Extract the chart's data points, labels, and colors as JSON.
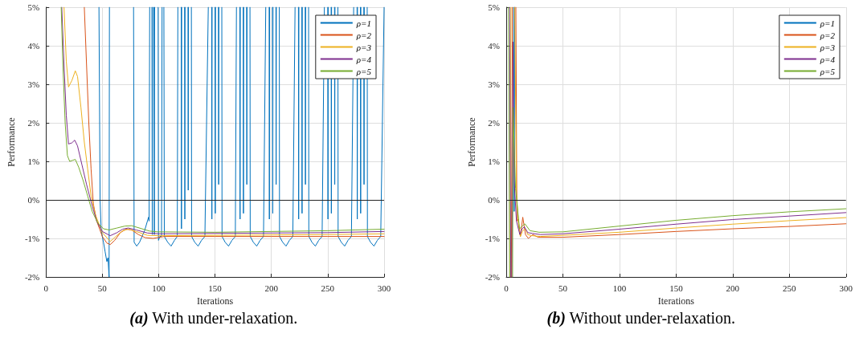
{
  "chart_data": [
    {
      "type": "line",
      "xlabel": "Iterations",
      "ylabel": "Performance",
      "annotations": [
        "(a) With under-relaxation."
      ],
      "xlim": [
        0,
        300
      ],
      "xticks": [
        0,
        50,
        100,
        150,
        200,
        250,
        300
      ],
      "ylim": [
        -2,
        5
      ],
      "yticks": [
        {
          "value": -2,
          "label": "-2%"
        },
        {
          "value": -1,
          "label": "-1%"
        },
        {
          "value": 0,
          "label": "0%"
        },
        {
          "value": 1,
          "label": "1%"
        },
        {
          "value": 2,
          "label": "2%"
        },
        {
          "value": 3,
          "label": "3%"
        },
        {
          "value": 4,
          "label": "4%"
        },
        {
          "value": 5,
          "label": "5%"
        }
      ],
      "grid": true,
      "legend": "top right",
      "marker": "none",
      "line_style": "solid",
      "ref_lines": [
        {
          "axis": "y",
          "value": 0,
          "label": null,
          "color": "#262626"
        }
      ],
      "series": [
        {
          "name": "ρ=1",
          "color": "#0072bd",
          "x": [
            47,
            48,
            49,
            51,
            52.5,
            54,
            55,
            56,
            56.3,
            66,
            77.7,
            78.2,
            80.5,
            83,
            87.5,
            91,
            91.5,
            92,
            93,
            94,
            94.3,
            94.6,
            95.2,
            95.8,
            96.1,
            96.4,
            98,
            99.5,
            99.8,
            101,
            102.5,
            103,
            103.8,
            104.6,
            105,
            108,
            111,
            114,
            116.5,
            117,
            118.5,
            120,
            120.2,
            120.4,
            121.5,
            123,
            123.2,
            123.4,
            124.5,
            126,
            126.2,
            126.4,
            127.5,
            129,
            129.2,
            132,
            135,
            138,
            141,
            144,
            145.5,
            147,
            147.2,
            147.4,
            148.5,
            150,
            150.2,
            150.4,
            151.5,
            153,
            153.2,
            153.4,
            154.5,
            156,
            156.2,
            159,
            162,
            165,
            168,
            169,
            170.5,
            172,
            172.2,
            172.4,
            173.5,
            175,
            175.2,
            175.4,
            176.5,
            178,
            178.2,
            178.4,
            179.5,
            181,
            181.2,
            184,
            187,
            190,
            193,
            195,
            196.5,
            198,
            198.2,
            198.4,
            199.5,
            201,
            201.2,
            201.4,
            202.5,
            204,
            204.2,
            204.4,
            205.5,
            207,
            207.2,
            210,
            213,
            216,
            219,
            221,
            222.5,
            224,
            224.2,
            224.4,
            225.5,
            227,
            227.2,
            227.4,
            228.5,
            230,
            230.2,
            230.4,
            231.5,
            233,
            233.2,
            236,
            239,
            242,
            245,
            247,
            248.5,
            250,
            250.2,
            250.4,
            251.5,
            253,
            253.2,
            253.4,
            254.5,
            256,
            256.2,
            256.4,
            257.5,
            259,
            259.2,
            262,
            265,
            268,
            271,
            273,
            274.5,
            276,
            276.2,
            276.4,
            277.5,
            279,
            279.2,
            279.4,
            280.5,
            282,
            282.2,
            282.4,
            283.5,
            285,
            285.2,
            288,
            291,
            294,
            297,
            300
          ],
          "values": [
            5,
            0,
            -0.8,
            -1.1,
            -1.35,
            -1.6,
            -1.5,
            -2,
            5,
            null,
            5,
            -1.1,
            -1.2,
            -1.1,
            -0.8,
            -0.45,
            -0.55,
            5,
            null,
            5,
            -0.9,
            5,
            null,
            5,
            -0.9,
            5,
            null,
            5,
            -1.05,
            -0.95,
            -0.95,
            5,
            null,
            5,
            -0.95,
            -1.1,
            -1.2,
            -1.05,
            -0.95,
            5,
            null,
            5,
            -0.75,
            5,
            null,
            5,
            -0.5,
            5,
            null,
            5,
            0.25,
            5,
            null,
            5,
            -0.95,
            -1.1,
            -1.2,
            -1.05,
            -0.95,
            5,
            null,
            5,
            -0.5,
            5,
            null,
            5,
            -0.35,
            5,
            null,
            5,
            0.4,
            5,
            null,
            5,
            -0.95,
            -1.1,
            -1.2,
            -1.05,
            -0.95,
            5,
            null,
            5,
            -0.5,
            5,
            null,
            5,
            -0.35,
            5,
            null,
            5,
            0.4,
            5,
            null,
            5,
            -0.95,
            -1.1,
            -1.2,
            -1.05,
            -0.95,
            5,
            null,
            5,
            -0.5,
            5,
            null,
            5,
            -0.35,
            5,
            null,
            5,
            0.4,
            5,
            null,
            5,
            -0.95,
            -1.1,
            -1.2,
            -1.05,
            -0.95,
            5,
            null,
            5,
            -0.5,
            5,
            null,
            5,
            -0.35,
            5,
            null,
            5,
            0.4,
            5,
            null,
            5,
            -0.95,
            -1.1,
            -1.2,
            -1.05,
            -0.95,
            5,
            null,
            5,
            -0.5,
            5,
            null,
            5,
            -0.35,
            5,
            null,
            5,
            0.4,
            5,
            null,
            5,
            -0.95,
            -1.1,
            -1.2,
            -1.05,
            -0.95,
            5,
            null,
            5,
            -0.5,
            5,
            null,
            5,
            -0.35,
            5,
            null,
            5,
            0.4,
            5,
            null,
            5,
            -0.95,
            -1.1,
            -1.2,
            -1.05,
            -0.95,
            5
          ]
        },
        {
          "name": "ρ=2",
          "color": "#d95319",
          "x": [
            34,
            36,
            38,
            40,
            42,
            45,
            50,
            54,
            57,
            61,
            66,
            71,
            76,
            82,
            88,
            95,
            105,
            150,
            200,
            250,
            300
          ],
          "values": [
            5,
            3.5,
            2,
            0.8,
            -0.1,
            -0.55,
            -0.95,
            -1.12,
            -1.16,
            -1.05,
            -0.85,
            -0.76,
            -0.78,
            -0.9,
            -0.98,
            -1.0,
            -0.95,
            -0.95,
            -0.95,
            -0.95,
            -0.95
          ]
        },
        {
          "name": "ρ=3",
          "color": "#edb120",
          "x": [
            16,
            18,
            20,
            23,
            26,
            28,
            31,
            34,
            37,
            40,
            44,
            50,
            57,
            62,
            68,
            73,
            80,
            90,
            100,
            150,
            200,
            250,
            300
          ],
          "values": [
            5,
            3.6,
            2.93,
            3.1,
            3.35,
            3.2,
            2.4,
            1.5,
            0.8,
            0.1,
            -0.4,
            -0.85,
            -1.08,
            -0.95,
            -0.8,
            -0.76,
            -0.82,
            -0.92,
            -0.93,
            -0.92,
            -0.91,
            -0.9,
            -0.88
          ]
        },
        {
          "name": "ρ=4",
          "color": "#7e2f8e",
          "x": [
            14,
            16,
            18,
            20,
            23,
            25.5,
            28,
            32,
            36,
            40,
            45,
            50,
            57,
            63,
            68,
            73,
            80,
            90,
            100,
            150,
            200,
            250,
            300
          ],
          "values": [
            5,
            3.5,
            2.2,
            1.45,
            1.48,
            1.55,
            1.4,
            0.9,
            0.4,
            -0.05,
            -0.55,
            -0.82,
            -0.93,
            -0.85,
            -0.76,
            -0.73,
            -0.78,
            -0.86,
            -0.88,
            -0.87,
            -0.86,
            -0.85,
            -0.82
          ]
        },
        {
          "name": "ρ=5",
          "color": "#77ac30",
          "x": [
            13.5,
            15,
            17,
            19,
            21,
            24,
            26,
            29,
            33,
            37,
            41,
            46,
            51,
            56,
            63,
            70,
            76,
            84,
            92,
            99,
            150,
            200,
            250,
            275,
            300
          ],
          "values": [
            5,
            3.5,
            2.0,
            1.15,
            1.0,
            1.03,
            1.05,
            0.85,
            0.5,
            0.1,
            -0.3,
            -0.6,
            -0.75,
            -0.78,
            -0.73,
            -0.68,
            -0.67,
            -0.74,
            -0.81,
            -0.83,
            -0.84,
            -0.82,
            -0.8,
            -0.78,
            -0.76
          ]
        }
      ]
    },
    {
      "type": "line",
      "xlabel": "Iterations",
      "ylabel": "Performance",
      "annotations": [
        "(b) Without under-relaxation."
      ],
      "xlim": [
        0,
        300
      ],
      "xticks": [
        0,
        50,
        100,
        150,
        200,
        250,
        300
      ],
      "ylim": [
        -2,
        5
      ],
      "yticks": [
        {
          "value": -2,
          "label": "-2%"
        },
        {
          "value": -1,
          "label": "-1%"
        },
        {
          "value": 0,
          "label": "0%"
        },
        {
          "value": 1,
          "label": "1%"
        },
        {
          "value": 2,
          "label": "2%"
        },
        {
          "value": 3,
          "label": "3%"
        },
        {
          "value": 4,
          "label": "4%"
        },
        {
          "value": 5,
          "label": "5%"
        }
      ],
      "grid": true,
      "legend": "top right",
      "marker": "none",
      "line_style": "solid",
      "ref_lines": [
        {
          "axis": "y",
          "value": 0,
          "label": null,
          "color": "#262626"
        }
      ],
      "series": [
        {
          "name": "ρ=1",
          "color": "#0072bd",
          "x": [
            6.5,
            7,
            7.5
          ],
          "values": [
            5,
            -0.3,
            5
          ]
        },
        {
          "name": "ρ=2",
          "color": "#d95319",
          "x": [
            4.5,
            5.5,
            7,
            8.5,
            9.4,
            10.5,
            12.5,
            14.6,
            17,
            19.5,
            23.5,
            28,
            50,
            100,
            150,
            200,
            250,
            300
          ],
          "values": [
            -2,
            5,
            null,
            5,
            -0.55,
            -0.5,
            -0.95,
            -0.45,
            -0.9,
            -1.0,
            -0.9,
            -0.97,
            -0.97,
            -0.9,
            -0.82,
            -0.75,
            -0.69,
            -0.62
          ]
        },
        {
          "name": "ρ=3",
          "color": "#edb120",
          "x": [
            3.5,
            4.2,
            6,
            7.5,
            9,
            11,
            12.5,
            14.5,
            17,
            19,
            23,
            30,
            50,
            100,
            150,
            200,
            250,
            300
          ],
          "values": [
            -2,
            5,
            null,
            5,
            0.2,
            -0.7,
            -0.95,
            -0.8,
            -0.75,
            -0.9,
            -0.93,
            -0.95,
            -0.92,
            -0.84,
            -0.73,
            -0.63,
            -0.54,
            -0.46
          ]
        },
        {
          "name": "ρ=4",
          "color": "#7e2f8e",
          "x": [
            3,
            4,
            4.5,
            5,
            6,
            7,
            9,
            12,
            14,
            16,
            19,
            23,
            30,
            50,
            100,
            150,
            200,
            250,
            300
          ],
          "values": [
            5,
            -2,
            null,
            -2,
            4.1,
            0.5,
            -0.55,
            -0.9,
            -0.75,
            -0.7,
            -0.85,
            -0.87,
            -0.9,
            -0.88,
            -0.76,
            -0.63,
            -0.51,
            -0.42,
            -0.33
          ]
        },
        {
          "name": "ρ=5",
          "color": "#77ac30",
          "x": [
            2,
            3,
            4.5,
            5.6,
            6,
            8.2,
            11.7,
            16.4,
            21,
            29,
            50,
            100,
            150,
            200,
            250,
            300
          ],
          "values": [
            5,
            -2,
            null,
            -2,
            2.4,
            0.3,
            -0.75,
            -0.62,
            -0.8,
            -0.84,
            -0.83,
            -0.68,
            -0.53,
            -0.41,
            -0.31,
            -0.23
          ]
        }
      ]
    }
  ]
}
